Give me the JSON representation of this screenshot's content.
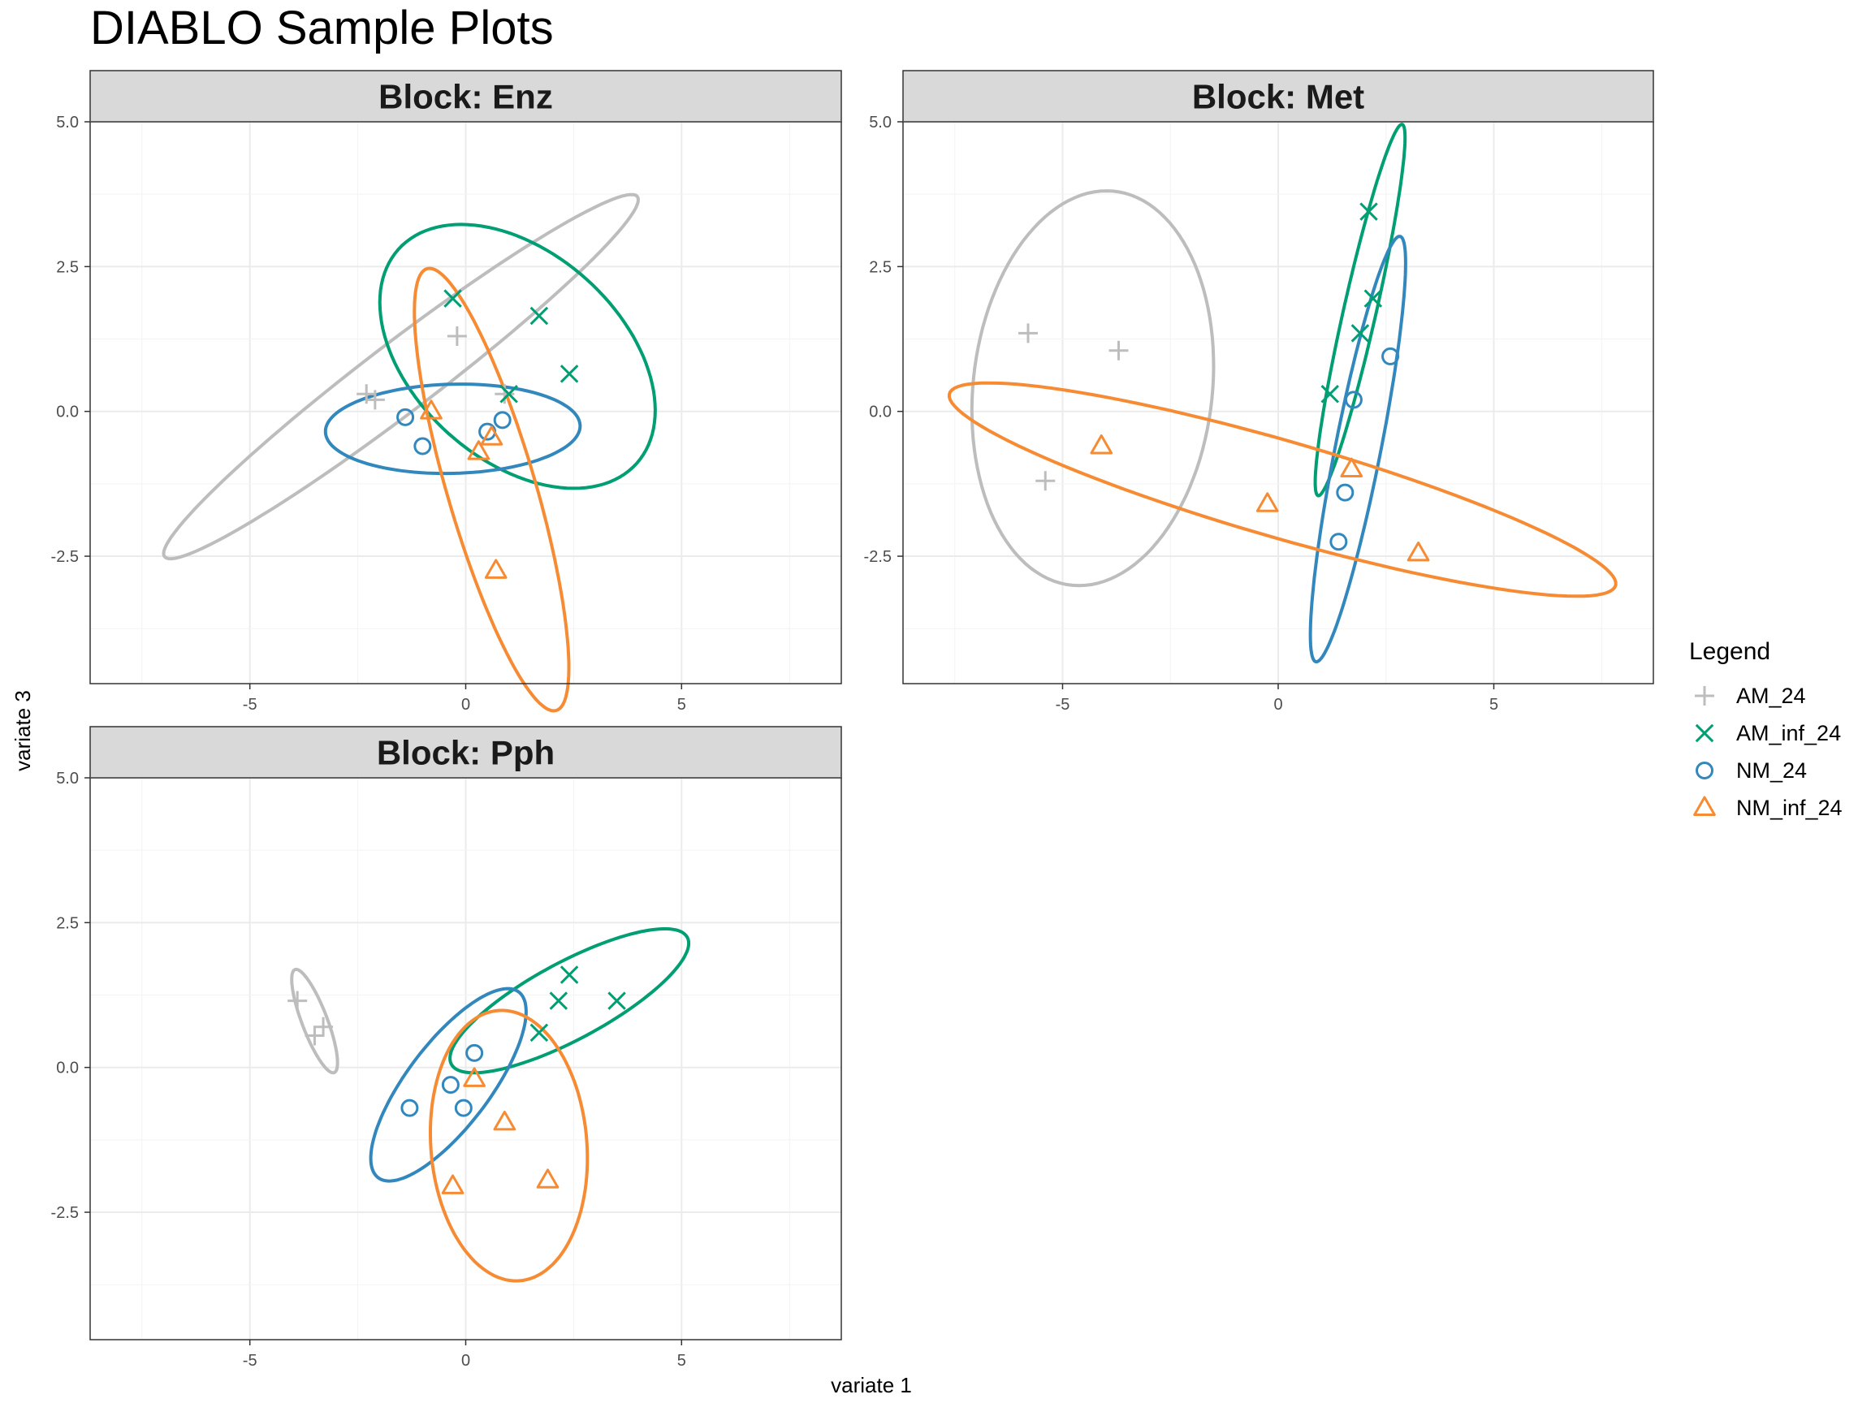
{
  "title": "DIABLO Sample Plots",
  "xlabel": "variate 1",
  "ylabel": "variate 3",
  "colors": {
    "AM_24": "#BDBDBD",
    "AM_inf_24": "#009E73",
    "NM_24": "#3288BD",
    "NM_inf_24": "#F68B33"
  },
  "legend": {
    "title": "Legend",
    "position": "right",
    "items": [
      {
        "label": "AM_24",
        "shape": "plus",
        "group": "AM_24"
      },
      {
        "label": "AM_inf_24",
        "shape": "cross",
        "group": "AM_inf_24"
      },
      {
        "label": "NM_24",
        "shape": "circle",
        "group": "NM_24"
      },
      {
        "label": "NM_inf_24",
        "shape": "triangle",
        "group": "NM_inf_24"
      }
    ]
  },
  "chart_data": [
    {
      "type": "scatter",
      "panel": "Block: Enz",
      "xlim": [
        -8.7,
        8.7
      ],
      "ylim": [
        -4.7,
        5.0
      ],
      "xticks": [
        -5,
        0,
        5
      ],
      "xtick_labels": [
        "-5",
        "0",
        "5"
      ],
      "yticks": [
        -2.5,
        0,
        2.5,
        5
      ],
      "ytick_labels": [
        "-2.5",
        "0.0",
        "2.5",
        "5.0"
      ],
      "grid": true,
      "points": [
        {
          "group": "AM_24",
          "x": -2.3,
          "y": 0.3
        },
        {
          "group": "AM_24",
          "x": -2.1,
          "y": 0.2
        },
        {
          "group": "AM_24",
          "x": -0.2,
          "y": 1.3
        },
        {
          "group": "AM_24",
          "x": 0.9,
          "y": 0.3
        },
        {
          "group": "AM_inf_24",
          "x": -0.3,
          "y": 1.95
        },
        {
          "group": "AM_inf_24",
          "x": 1.7,
          "y": 1.65
        },
        {
          "group": "AM_inf_24",
          "x": 2.4,
          "y": 0.65
        },
        {
          "group": "AM_inf_24",
          "x": 1.0,
          "y": 0.3
        },
        {
          "group": "NM_24",
          "x": -1.4,
          "y": -0.1
        },
        {
          "group": "NM_24",
          "x": -1.0,
          "y": -0.6
        },
        {
          "group": "NM_24",
          "x": 0.5,
          "y": -0.35
        },
        {
          "group": "NM_24",
          "x": 0.85,
          "y": -0.15
        },
        {
          "group": "NM_inf_24",
          "x": -0.8,
          "y": 0.0
        },
        {
          "group": "NM_inf_24",
          "x": 0.3,
          "y": -0.7
        },
        {
          "group": "NM_inf_24",
          "x": 0.6,
          "y": -0.45
        },
        {
          "group": "NM_inf_24",
          "x": 0.7,
          "y": -2.75
        }
      ],
      "ellipses": [
        {
          "group": "AM_24",
          "cx": -1.5,
          "cy": 0.6,
          "rx": 6.3,
          "ry": 0.65,
          "angle": 29.4
        },
        {
          "group": "AM_inf_24",
          "cx": 1.2,
          "cy": 0.95,
          "rx": 3.4,
          "ry": 1.95,
          "angle": -25
        },
        {
          "group": "NM_24",
          "cx": -0.3,
          "cy": -0.3,
          "rx": 2.95,
          "ry": 0.77,
          "angle": 1
        },
        {
          "group": "NM_inf_24",
          "cx": 0.6,
          "cy": -1.35,
          "rx": 4.1,
          "ry": 0.99,
          "angle": -68
        }
      ]
    },
    {
      "type": "scatter",
      "panel": "Block: Met",
      "xlim": [
        -8.7,
        8.7
      ],
      "ylim": [
        -4.7,
        5.0
      ],
      "xticks": [
        -5,
        0,
        5
      ],
      "xtick_labels": [
        "-5",
        "0",
        "5"
      ],
      "yticks": [
        -2.5,
        0,
        2.5,
        5
      ],
      "ytick_labels": [
        "-2.5",
        "0.0",
        "2.5",
        "5.0"
      ],
      "grid": true,
      "points": [
        {
          "group": "AM_24",
          "x": -5.8,
          "y": 1.35
        },
        {
          "group": "AM_24",
          "x": -3.7,
          "y": 1.05
        },
        {
          "group": "AM_24",
          "x": -5.4,
          "y": -1.2
        },
        {
          "group": "AM_inf_24",
          "x": 2.1,
          "y": 3.45
        },
        {
          "group": "AM_inf_24",
          "x": 2.2,
          "y": 1.95
        },
        {
          "group": "AM_inf_24",
          "x": 1.9,
          "y": 1.35
        },
        {
          "group": "AM_inf_24",
          "x": 1.2,
          "y": 0.3
        },
        {
          "group": "NM_24",
          "x": 2.6,
          "y": 0.95
        },
        {
          "group": "NM_24",
          "x": 1.75,
          "y": 0.2
        },
        {
          "group": "NM_24",
          "x": 1.55,
          "y": -1.4
        },
        {
          "group": "NM_24",
          "x": 1.4,
          "y": -2.25
        },
        {
          "group": "NM_inf_24",
          "x": -4.1,
          "y": -0.6
        },
        {
          "group": "NM_inf_24",
          "x": 1.7,
          "y": -1.0
        },
        {
          "group": "NM_inf_24",
          "x": -0.25,
          "y": -1.6
        },
        {
          "group": "NM_inf_24",
          "x": 3.25,
          "y": -2.45
        }
      ],
      "ellipses": [
        {
          "group": "AM_24",
          "cx": -4.3,
          "cy": 0.4,
          "rx": 3.45,
          "ry": 2.75,
          "angle": 75
        },
        {
          "group": "AM_inf_24",
          "cx": 1.9,
          "cy": 1.75,
          "rx": 3.35,
          "ry": 0.37,
          "angle": 73
        },
        {
          "group": "NM_24",
          "cx": 1.85,
          "cy": -0.65,
          "rx": 3.8,
          "ry": 0.52,
          "angle": 75
        },
        {
          "group": "NM_inf_24",
          "cx": 0.1,
          "cy": -1.35,
          "rx": 7.9,
          "ry": 0.85,
          "angle": -12
        }
      ]
    },
    {
      "type": "scatter",
      "panel": "Block: Pph",
      "xlim": [
        -8.7,
        8.7
      ],
      "ylim": [
        -4.7,
        5.0
      ],
      "xticks": [
        -5,
        0,
        5
      ],
      "xtick_labels": [
        "-5",
        "0",
        "5"
      ],
      "yticks": [
        -2.5,
        0,
        2.5,
        5
      ],
      "ytick_labels": [
        "-2.5",
        "0.0",
        "2.5",
        "5.0"
      ],
      "grid": true,
      "points": [
        {
          "group": "AM_24",
          "x": -3.9,
          "y": 1.15
        },
        {
          "group": "AM_24",
          "x": -3.5,
          "y": 0.55
        },
        {
          "group": "AM_24",
          "x": -3.3,
          "y": 0.7
        },
        {
          "group": "AM_inf_24",
          "x": 2.4,
          "y": 1.6
        },
        {
          "group": "AM_inf_24",
          "x": 2.15,
          "y": 1.15
        },
        {
          "group": "AM_inf_24",
          "x": 3.5,
          "y": 1.15
        },
        {
          "group": "AM_inf_24",
          "x": 1.7,
          "y": 0.6
        },
        {
          "group": "NM_24",
          "x": 0.2,
          "y": 0.25
        },
        {
          "group": "NM_24",
          "x": -0.35,
          "y": -0.3
        },
        {
          "group": "NM_24",
          "x": -1.3,
          "y": -0.7
        },
        {
          "group": "NM_24",
          "x": -0.05,
          "y": -0.7
        },
        {
          "group": "NM_inf_24",
          "x": 0.2,
          "y": -0.2
        },
        {
          "group": "NM_inf_24",
          "x": 0.9,
          "y": -0.95
        },
        {
          "group": "NM_inf_24",
          "x": -0.3,
          "y": -2.05
        },
        {
          "group": "NM_inf_24",
          "x": 1.9,
          "y": -1.95
        }
      ],
      "ellipses": [
        {
          "group": "AM_24",
          "cx": -3.5,
          "cy": 0.8,
          "rx": 1.0,
          "ry": 0.28,
          "angle": -62
        },
        {
          "group": "AM_inf_24",
          "cx": 2.4,
          "cy": 1.15,
          "rx": 2.95,
          "ry": 0.7,
          "angle": 21
        },
        {
          "group": "NM_24",
          "cx": -0.4,
          "cy": -0.3,
          "rx": 2.3,
          "ry": 0.84,
          "angle": 42
        },
        {
          "group": "NM_inf_24",
          "cx": 1.0,
          "cy": -1.35,
          "rx": 2.35,
          "ry": 1.8,
          "angle": -80
        }
      ]
    }
  ]
}
